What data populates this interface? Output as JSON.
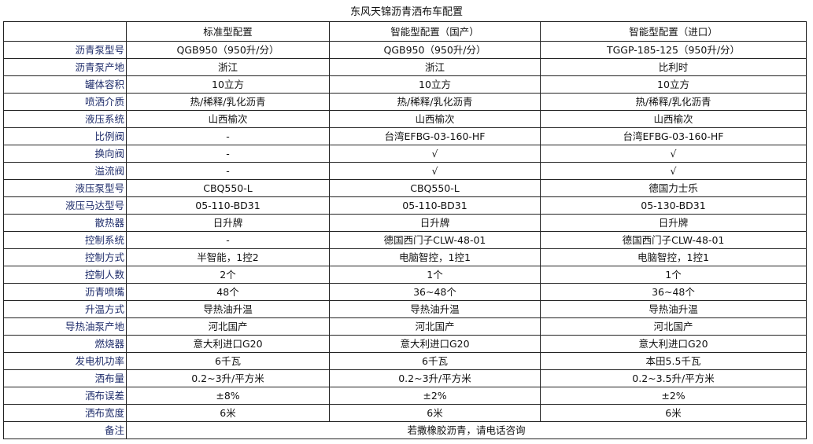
{
  "title": "东风天锦沥青洒布车配置",
  "headers": [
    "",
    "标准型配置",
    "智能型配置（国产）",
    "智能型配置（进口）"
  ],
  "rows": [
    {
      "label": "沥青泵型号",
      "values": [
        "QGB950（950升/分）",
        "QGB950（950升/分）",
        "TGGP-185-125（950升/分）"
      ]
    },
    {
      "label": "沥青泵产地",
      "values": [
        "浙江",
        "浙江",
        "比利时"
      ]
    },
    {
      "label": "罐体容积",
      "values": [
        "10立方",
        "10立方",
        "10立方"
      ]
    },
    {
      "label": "喷洒介质",
      "values": [
        "热/稀释/乳化沥青",
        "热/稀释/乳化沥青",
        "热/稀释/乳化沥青"
      ]
    },
    {
      "label": "液压系统",
      "values": [
        "山西榆次",
        "山西榆次",
        "山西榆次"
      ]
    },
    {
      "label": "比例阀",
      "values": [
        "-",
        "台湾EFBG-03-160-HF",
        "台湾EFBG-03-160-HF"
      ]
    },
    {
      "label": "换向阀",
      "values": [
        "-",
        "√",
        "√"
      ]
    },
    {
      "label": "溢流阀",
      "values": [
        "-",
        "√",
        "√"
      ]
    },
    {
      "label": "液压泵型号",
      "values": [
        "CBQ550-L",
        "CBQ550-L",
        "德国力士乐"
      ]
    },
    {
      "label": "液压马达型号",
      "values": [
        "05-110-BD31",
        "05-110-BD31",
        "05-130-BD31"
      ]
    },
    {
      "label": "散热器",
      "values": [
        "日升牌",
        "日升牌",
        "日升牌"
      ]
    },
    {
      "label": "控制系统",
      "values": [
        "-",
        "德国西门子CLW-48-01",
        "德国西门子CLW-48-01"
      ]
    },
    {
      "label": "控制方式",
      "values": [
        "半智能，1控2",
        "电脑智控，1控1",
        "电脑智控，1控1"
      ]
    },
    {
      "label": "控制人数",
      "values": [
        "2个",
        "1个",
        "1个"
      ]
    },
    {
      "label": "沥青喷嘴",
      "values": [
        "48个",
        "36~48个",
        "36~48个"
      ]
    },
    {
      "label": "升温方式",
      "values": [
        "导热油升温",
        "导热油升温",
        "导热油升温"
      ]
    },
    {
      "label": "导热油泵产地",
      "values": [
        "河北国产",
        "河北国产",
        "河北国产"
      ]
    },
    {
      "label": "燃烧器",
      "values": [
        "意大利进口G20",
        "意大利进口G20",
        "意大利进口G20"
      ]
    },
    {
      "label": "发电机功率",
      "values": [
        "6千瓦",
        "6千瓦",
        "本田5.5千瓦"
      ]
    },
    {
      "label": "洒布量",
      "values": [
        "0.2~3升/平方米",
        "0.2~3升/平方米",
        "0.2~3.5升/平方米"
      ]
    },
    {
      "label": "洒布误差",
      "values": [
        "±8%",
        "±2%",
        "±2%"
      ]
    },
    {
      "label": "洒布宽度",
      "values": [
        "6米",
        "6米",
        "6米"
      ]
    }
  ],
  "remark": {
    "label": "备注",
    "value": "若撒橡胶沥青，请电话咨询"
  }
}
